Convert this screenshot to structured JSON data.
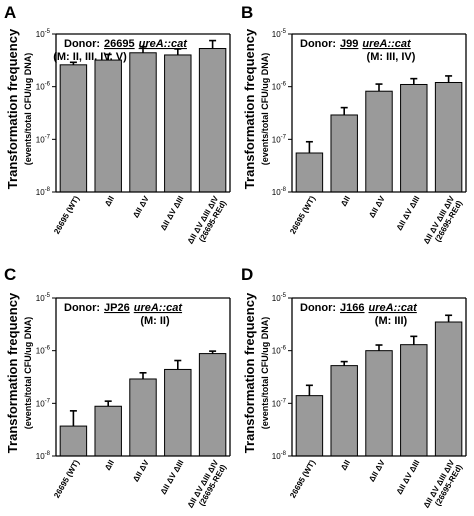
{
  "chart_data": [
    {
      "type": "bar",
      "panel": "A",
      "donor_prefix": "Donor:",
      "donor_strain": "26695",
      "donor_allele": "ureA::cat",
      "motifs": "(M: II, III, IV, V)",
      "ylabel": "Transformation frequency",
      "ylabel_sub": "(events/total CFU/ug DNA)",
      "yscale": "log",
      "ylim": [
        1e-08,
        1e-05
      ],
      "yticks": [
        {
          "base": "10",
          "exp": "-8"
        },
        {
          "base": "10",
          "exp": "-7"
        },
        {
          "base": "10",
          "exp": "-6"
        },
        {
          "base": "10",
          "exp": "-5"
        }
      ],
      "categories": [
        [
          "26695 (WT)"
        ],
        [
          "ΔII"
        ],
        [
          "ΔII ΔV"
        ],
        [
          "ΔII ΔV ΔIII"
        ],
        [
          "ΔII ΔV ΔIII ΔIV",
          "(26695-REd)"
        ]
      ],
      "values": [
        2.6e-06,
        3.2e-06,
        4.4e-06,
        4e-06,
        5.3e-06
      ],
      "errors": [
        3e-07,
        9e-07,
        1.3e-06,
        1.2e-06,
        2.2e-06
      ],
      "bar_color": "#9a9a9a"
    },
    {
      "type": "bar",
      "panel": "B",
      "donor_prefix": "Donor:",
      "donor_strain": "J99",
      "donor_allele": "ureA::cat",
      "motifs": "(M: III, IV)",
      "ylabel": "Transformation frequency",
      "ylabel_sub": "(events/total CFU/ug DNA)",
      "yscale": "log",
      "ylim": [
        1e-08,
        1e-05
      ],
      "yticks": [
        {
          "base": "10",
          "exp": "-8"
        },
        {
          "base": "10",
          "exp": "-7"
        },
        {
          "base": "10",
          "exp": "-6"
        },
        {
          "base": "10",
          "exp": "-5"
        }
      ],
      "categories": [
        [
          "26695 (WT)"
        ],
        [
          "ΔII"
        ],
        [
          "ΔII ΔV"
        ],
        [
          "ΔII ΔV ΔIII"
        ],
        [
          "ΔII ΔV ΔIII ΔIV",
          "(26695-REd)"
        ]
      ],
      "values": [
        5.5e-08,
        2.9e-07,
        8.2e-07,
        1.1e-06,
        1.2e-06
      ],
      "errors": [
        3.5e-08,
        1.1e-07,
        3e-07,
        3.2e-07,
        4e-07
      ],
      "bar_color": "#9a9a9a"
    },
    {
      "type": "bar",
      "panel": "C",
      "donor_prefix": "Donor:",
      "donor_strain": "JP26",
      "donor_allele": "ureA::cat",
      "motifs": "(M: II)",
      "ylabel": "Transformation frequency",
      "ylabel_sub": "(events/total CFU/ug DNA)",
      "yscale": "log",
      "ylim": [
        1e-08,
        1e-05
      ],
      "yticks": [
        {
          "base": "10",
          "exp": "-8"
        },
        {
          "base": "10",
          "exp": "-7"
        },
        {
          "base": "10",
          "exp": "-6"
        },
        {
          "base": "10",
          "exp": "-5"
        }
      ],
      "categories": [
        [
          "26695 (WT)"
        ],
        [
          "ΔII"
        ],
        [
          "ΔII ΔV"
        ],
        [
          "ΔII ΔV ΔIII"
        ],
        [
          "ΔII ΔV ΔIII ΔIV",
          "(26695-REd)"
        ]
      ],
      "values": [
        3.7e-08,
        8.8e-08,
        2.9e-07,
        4.4e-07,
        8.8e-07
      ],
      "errors": [
        3.5e-08,
        2.2e-08,
        9e-08,
        2.1e-07,
        1e-07
      ],
      "bar_color": "#9a9a9a"
    },
    {
      "type": "bar",
      "panel": "D",
      "donor_prefix": "Donor:",
      "donor_strain": "J166",
      "donor_allele": "ureA::cat",
      "motifs": "(M: III)",
      "ylabel": "Transformation frequency",
      "ylabel_sub": "(events/total CFU/ug DNA)",
      "yscale": "log",
      "ylim": [
        1e-08,
        1e-05
      ],
      "yticks": [
        {
          "base": "10",
          "exp": "-8"
        },
        {
          "base": "10",
          "exp": "-7"
        },
        {
          "base": "10",
          "exp": "-6"
        },
        {
          "base": "10",
          "exp": "-5"
        }
      ],
      "categories": [
        [
          "26695 (WT)"
        ],
        [
          "ΔII"
        ],
        [
          "ΔII ΔV"
        ],
        [
          "ΔII ΔV ΔIII"
        ],
        [
          "ΔII ΔV ΔIII ΔIV",
          "(26695-REd)"
        ]
      ],
      "values": [
        1.4e-07,
        5.2e-07,
        1e-06,
        1.3e-06,
        3.5e-06
      ],
      "errors": [
        8e-08,
        1e-07,
        2.8e-07,
        5.7e-07,
        1.2e-06
      ],
      "bar_color": "#9a9a9a"
    }
  ]
}
